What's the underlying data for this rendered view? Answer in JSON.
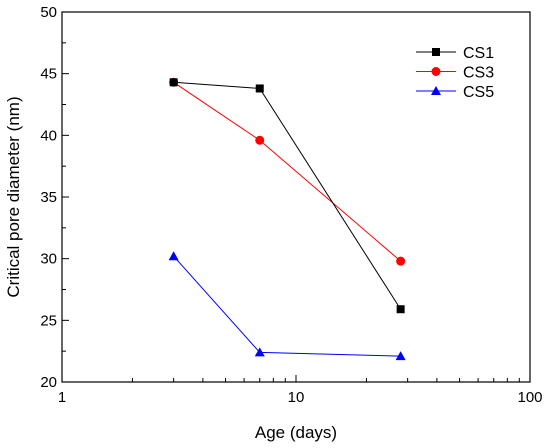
{
  "chart_data": {
    "type": "line",
    "title": "",
    "xlabel": "Age (days)",
    "ylabel": "Critical pore diameter (nm)",
    "x_scale": "log",
    "xlim": [
      1,
      100
    ],
    "ylim": [
      20,
      50
    ],
    "x_ticks": [
      1,
      10,
      100
    ],
    "x_tick_labels": [
      "1",
      "10",
      "100"
    ],
    "y_ticks": [
      20,
      25,
      30,
      35,
      40,
      45,
      50
    ],
    "y_tick_labels": [
      "20",
      "25",
      "30",
      "35",
      "40",
      "45",
      "50"
    ],
    "grid": false,
    "legend_position": "top-right",
    "series": [
      {
        "name": "CS1",
        "color": "#000000",
        "marker": "square",
        "x": [
          3,
          7,
          28
        ],
        "y": [
          44.3,
          43.8,
          25.9
        ]
      },
      {
        "name": "CS3",
        "color": "#ff0000",
        "marker": "circle",
        "x": [
          3,
          7,
          28
        ],
        "y": [
          44.3,
          39.6,
          29.8
        ]
      },
      {
        "name": "CS5",
        "color": "#0000ff",
        "marker": "triangle",
        "x": [
          3,
          7,
          28
        ],
        "y": [
          30.2,
          22.4,
          22.1
        ]
      }
    ]
  }
}
